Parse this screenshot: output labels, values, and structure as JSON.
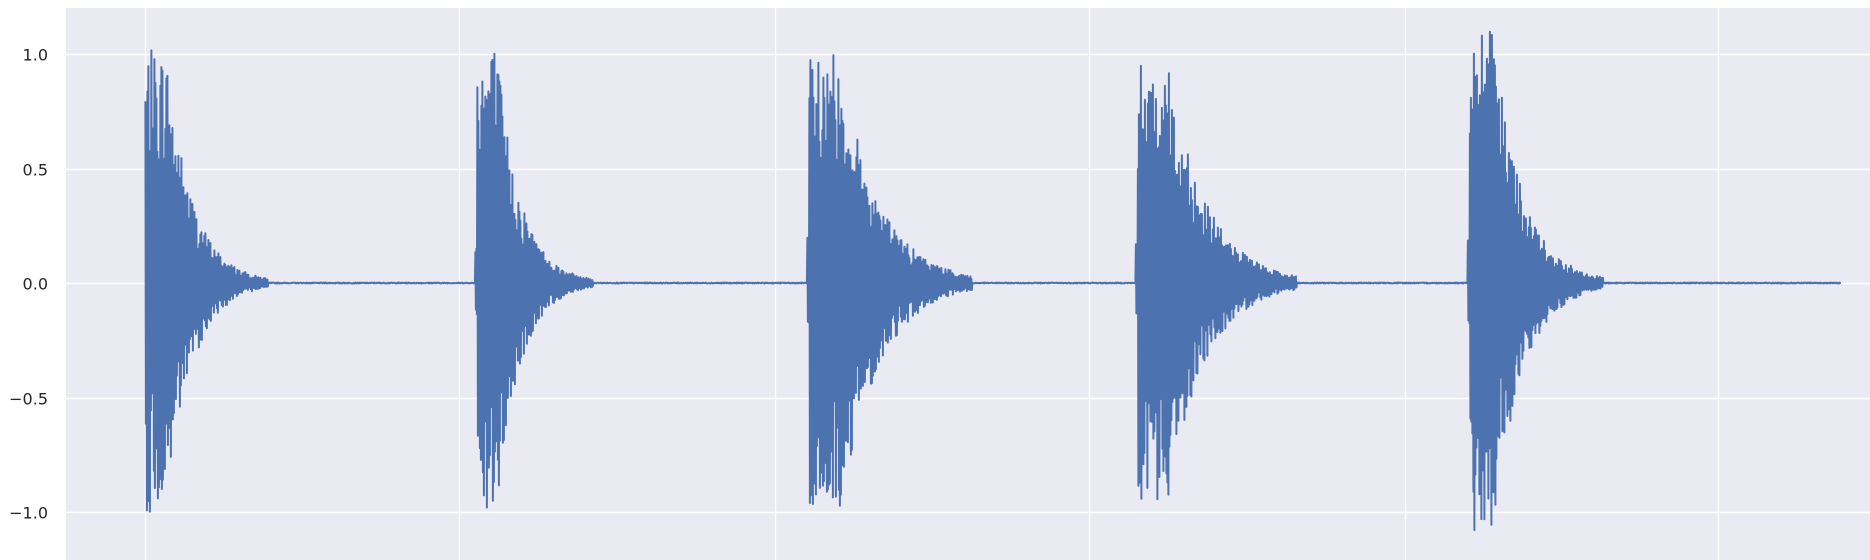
{
  "chart_data": {
    "type": "line",
    "title": "",
    "xlabel": "",
    "ylabel": "",
    "xlim": [
      0,
      1
    ],
    "ylim": [
      -1.1,
      1.2
    ],
    "x_grid": [
      0.044,
      0.218,
      0.393,
      0.567,
      0.742,
      0.916
    ],
    "y_ticks": [
      1.0,
      0.5,
      0.0,
      -0.5,
      -1.0
    ],
    "y_tick_labels": [
      "1.0",
      "0.5",
      "0.0",
      "−0.5",
      "−1.0"
    ],
    "grid": true,
    "style": {
      "background": "#eaeaf2",
      "grid_color": "#ffffff",
      "line_color": "#4c72b0"
    },
    "series": [
      {
        "values_description_free": true,
        "bursts": [
          {
            "start": 0.044,
            "peak_pos": 1.02,
            "peak_neg": -1.0,
            "decay_end": 0.09
          },
          {
            "start": 0.228,
            "peak_pos": 1.05,
            "peak_neg": -1.03,
            "decay_end": 0.27
          },
          {
            "start": 0.412,
            "peak_pos": 1.0,
            "peak_neg": -1.01,
            "decay_end": 0.48
          },
          {
            "start": 0.594,
            "peak_pos": 1.0,
            "peak_neg": -0.95,
            "decay_end": 0.66
          },
          {
            "start": 0.778,
            "peak_pos": 1.1,
            "peak_neg": -1.09,
            "decay_end": 0.83
          }
        ],
        "x_end": 0.984
      }
    ]
  }
}
